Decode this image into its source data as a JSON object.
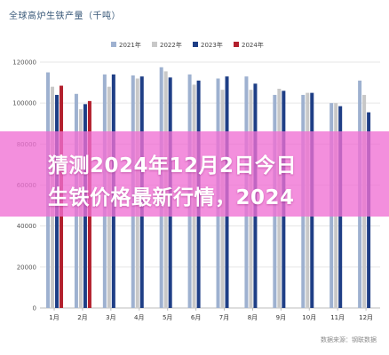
{
  "chart_data": {
    "type": "bar",
    "title": "全球高炉生铁产量（千吨）",
    "categories": [
      "1月",
      "2月",
      "3月",
      "4月",
      "5月",
      "6月",
      "7月",
      "8月",
      "9月",
      "10月",
      "11月",
      "12月"
    ],
    "series": [
      {
        "name": "2021年",
        "color": "#9eb1d0",
        "values": [
          115000,
          104500,
          114000,
          113500,
          117500,
          114000,
          112000,
          113000,
          104000,
          104000,
          100000,
          111000
        ]
      },
      {
        "name": "2022年",
        "color": "#c8c8c8",
        "values": [
          108000,
          97000,
          108000,
          112000,
          115500,
          109000,
          106500,
          106500,
          107000,
          105000,
          100000,
          104000
        ]
      },
      {
        "name": "2023年",
        "color": "#1f3f86",
        "values": [
          104000,
          99500,
          114000,
          113000,
          112500,
          111000,
          113000,
          109500,
          106000,
          105000,
          98500,
          95500
        ]
      },
      {
        "name": "2024年",
        "color": "#b3202d",
        "values": [
          108500,
          101000,
          null,
          null,
          null,
          null,
          null,
          null,
          null,
          null,
          null,
          null
        ]
      }
    ],
    "ylim": [
      0,
      120000
    ],
    "yticks": [
      "0",
      "20000",
      "40000",
      "60000",
      "80000",
      "100000",
      "120000"
    ],
    "grid": true,
    "legend": "top-center"
  },
  "banner": {
    "line1": "猜测2024年12月2日今日",
    "line2": "生铁价格最新行情，2024"
  },
  "source": "数据来源：钢联数据"
}
